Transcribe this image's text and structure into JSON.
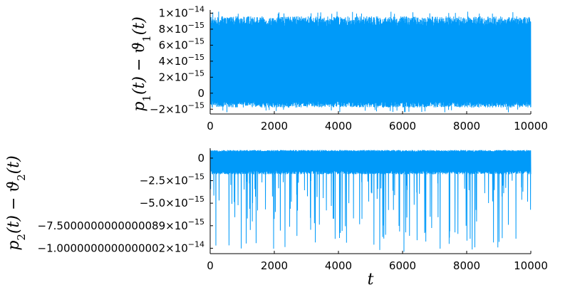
{
  "chart_data": [
    {
      "type": "line",
      "ylabel": "p_1(t) − ϑ_1(t)",
      "xlabel": "",
      "xlim": [
        0,
        10000
      ],
      "ylim": [
        -2.6e-15,
        1.04e-14
      ],
      "grid": false,
      "legend": "none",
      "x_ticks": [
        {
          "value": 0,
          "label": "0"
        },
        {
          "value": 2000,
          "label": "2000"
        },
        {
          "value": 4000,
          "label": "4000"
        },
        {
          "value": 6000,
          "label": "6000"
        },
        {
          "value": 8000,
          "label": "8000"
        },
        {
          "value": 10000,
          "label": "10000"
        }
      ],
      "y_ticks": [
        {
          "value": -2e-15,
          "mantissa": "−2×10",
          "exponent": "−15"
        },
        {
          "value": 0,
          "mantissa": "0",
          "exponent": ""
        },
        {
          "value": 2e-15,
          "mantissa": "2×10",
          "exponent": "−15"
        },
        {
          "value": 4e-15,
          "mantissa": "4×10",
          "exponent": "−15"
        },
        {
          "value": 6e-15,
          "mantissa": "6×10",
          "exponent": "−15"
        },
        {
          "value": 8e-15,
          "mantissa": "8×10",
          "exponent": "−15"
        },
        {
          "value": 1e-14,
          "mantissa": "1×10",
          "exponent": "−14"
        }
      ],
      "series": [
        {
          "color": "#009AF9",
          "n_points": 10000,
          "band_low": -1.8e-15,
          "band_high": 9.6e-15,
          "typical_min": -1.8e-15,
          "typical_max": 9.8e-15,
          "extreme_min": -2.4e-15,
          "extreme_max": 1.02e-14
        }
      ]
    },
    {
      "type": "line",
      "ylabel": "p_2(t) − ϑ_2(t)",
      "xlabel": "t",
      "xlim": [
        0,
        10000
      ],
      "ylim": [
        -1.06e-14,
        1.1e-15
      ],
      "grid": false,
      "legend": "none",
      "x_ticks": [
        {
          "value": 0,
          "label": "0"
        },
        {
          "value": 2000,
          "label": "2000"
        },
        {
          "value": 4000,
          "label": "4000"
        },
        {
          "value": 6000,
          "label": "6000"
        },
        {
          "value": 8000,
          "label": "8000"
        },
        {
          "value": 10000,
          "label": "10000"
        }
      ],
      "y_ticks": [
        {
          "value": -1.0000000000000002e-14,
          "mantissa": "−1.0000000000000002×10",
          "exponent": "−14"
        },
        {
          "value": -7.500000000000001e-15,
          "mantissa": "−7.5000000000000089×10",
          "exponent": "−15"
        },
        {
          "value": -5e-15,
          "mantissa": "−5.0×10",
          "exponent": "−15"
        },
        {
          "value": -2.5e-15,
          "mantissa": "−2.5×10",
          "exponent": "−15"
        },
        {
          "value": 0,
          "mantissa": "0",
          "exponent": ""
        }
      ],
      "series": [
        {
          "color": "#009AF9",
          "n_points": 10000,
          "band_low": -1.8e-15,
          "band_high": 9e-16,
          "typical_min": -1.8e-15,
          "typical_max": 9e-16,
          "spike_min": -1.04e-14,
          "spike_typical_min": -6.5e-15
        }
      ]
    }
  ]
}
